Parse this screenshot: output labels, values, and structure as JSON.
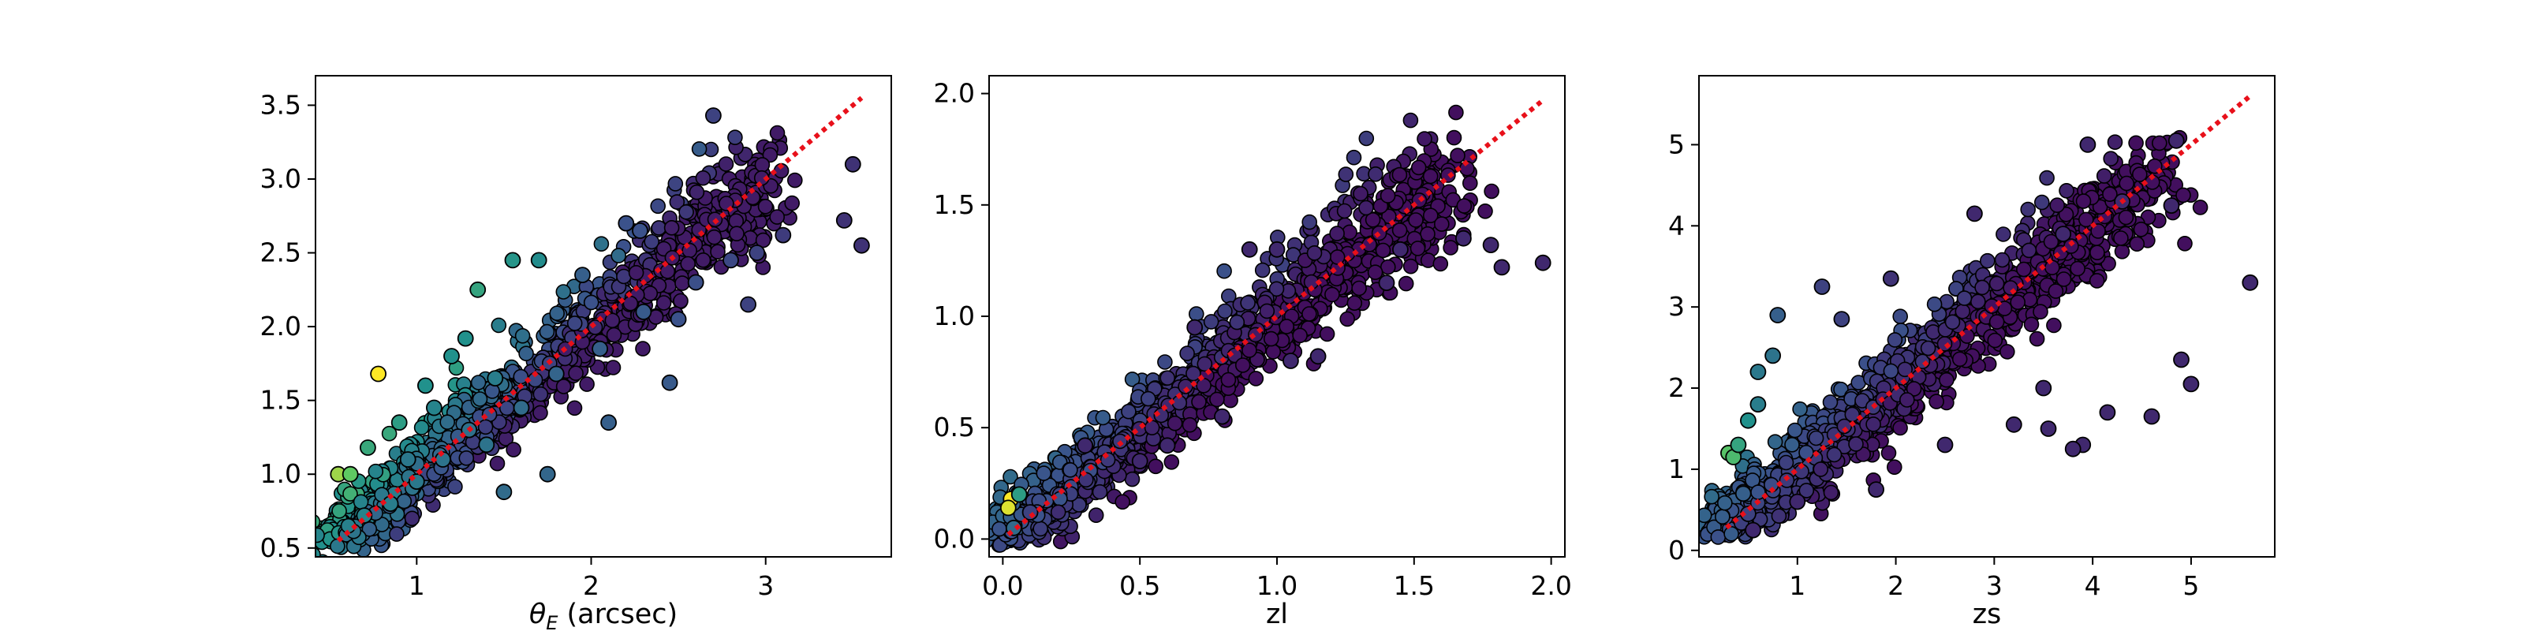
{
  "chart_data": [
    {
      "type": "scatter",
      "xlabel_main": "θ",
      "xlabel_sub": "E",
      "xlabel_rest": " (arcsec)",
      "ylabel": "",
      "xlim": [
        0.42,
        3.72
      ],
      "ylim": [
        0.44,
        3.7
      ],
      "xticks": [
        1,
        2,
        3
      ],
      "xtick_labels": [
        "1",
        "2",
        "3"
      ],
      "yticks": [
        0.5,
        1.0,
        1.5,
        2.0,
        2.5,
        3.0,
        3.5
      ],
      "ytick_labels": [
        "0.5",
        "1.0",
        "1.5",
        "2.0",
        "2.5",
        "3.0",
        "3.5"
      ],
      "reference_line": {
        "x": [
          0.55,
          3.55
        ],
        "y": [
          0.55,
          3.55
        ],
        "color": "#e8101a",
        "style": "dotted"
      },
      "colormap": "viridis",
      "grid": false,
      "points": [
        {
          "x": 0.55,
          "y": 1.0,
          "c": 0.85
        },
        {
          "x": 0.62,
          "y": 1.0,
          "c": 0.75
        },
        {
          "x": 0.78,
          "y": 1.68,
          "c": 1.0
        },
        {
          "x": 0.72,
          "y": 1.18,
          "c": 0.6
        },
        {
          "x": 0.9,
          "y": 1.35,
          "c": 0.55
        },
        {
          "x": 1.05,
          "y": 1.6,
          "c": 0.5
        },
        {
          "x": 1.2,
          "y": 1.8,
          "c": 0.5
        },
        {
          "x": 1.35,
          "y": 2.25,
          "c": 0.58
        },
        {
          "x": 1.55,
          "y": 2.45,
          "c": 0.52
        },
        {
          "x": 1.7,
          "y": 2.45,
          "c": 0.48
        },
        {
          "x": 1.28,
          "y": 1.92,
          "c": 0.5
        },
        {
          "x": 1.1,
          "y": 1.45,
          "c": 0.45
        },
        {
          "x": 0.95,
          "y": 1.1,
          "c": 0.4
        },
        {
          "x": 1.5,
          "y": 0.88,
          "c": 0.35
        },
        {
          "x": 1.75,
          "y": 1.0,
          "c": 0.33
        },
        {
          "x": 2.1,
          "y": 1.35,
          "c": 0.3
        },
        {
          "x": 2.45,
          "y": 1.62,
          "c": 0.28
        },
        {
          "x": 2.7,
          "y": 3.43,
          "c": 0.2
        },
        {
          "x": 3.5,
          "y": 3.1,
          "c": 0.15
        },
        {
          "x": 3.45,
          "y": 2.72,
          "c": 0.15
        },
        {
          "x": 3.55,
          "y": 2.55,
          "c": 0.15
        },
        {
          "x": 3.1,
          "y": 2.62,
          "c": 0.18
        },
        {
          "x": 2.95,
          "y": 2.5,
          "c": 0.2
        },
        {
          "x": 2.9,
          "y": 2.15,
          "c": 0.2
        },
        {
          "x": 2.2,
          "y": 2.7,
          "c": 0.25
        },
        {
          "x": 2.28,
          "y": 2.65,
          "c": 0.25
        },
        {
          "x": 2.5,
          "y": 2.05,
          "c": 0.25
        },
        {
          "x": 1.95,
          "y": 2.35,
          "c": 0.3
        },
        {
          "x": 1.6,
          "y": 1.45,
          "c": 0.35
        },
        {
          "x": 1.4,
          "y": 1.2,
          "c": 0.38
        },
        {
          "x": 2.05,
          "y": 1.85,
          "c": 0.3
        },
        {
          "x": 1.8,
          "y": 1.68,
          "c": 0.32
        },
        {
          "x": 2.3,
          "y": 2.1,
          "c": 0.28
        },
        {
          "x": 2.6,
          "y": 2.3,
          "c": 0.24
        },
        {
          "x": 2.8,
          "y": 2.45,
          "c": 0.22
        },
        {
          "x": 0.85,
          "y": 0.8,
          "c": 0.42
        },
        {
          "x": 1.0,
          "y": 0.95,
          "c": 0.4
        },
        {
          "x": 1.15,
          "y": 1.1,
          "c": 0.38
        },
        {
          "x": 1.3,
          "y": 1.3,
          "c": 0.37
        },
        {
          "x": 0.7,
          "y": 0.72,
          "c": 0.45
        },
        {
          "x": 1.45,
          "y": 1.65,
          "c": 0.42
        }
      ]
    },
    {
      "type": "scatter",
      "xlabel": "zl",
      "ylabel": "",
      "xlim": [
        -0.05,
        2.05
      ],
      "ylim": [
        -0.08,
        2.08
      ],
      "xticks": [
        0.0,
        0.5,
        1.0,
        1.5,
        2.0
      ],
      "xtick_labels": [
        "0.0",
        "0.5",
        "1.0",
        "1.5",
        "2.0"
      ],
      "yticks": [
        0.0,
        0.5,
        1.0,
        1.5,
        2.0
      ],
      "ytick_labels": [
        "0.0",
        "0.5",
        "1.0",
        "1.5",
        "2.0"
      ],
      "reference_line": {
        "x": [
          0.02,
          1.97
        ],
        "y": [
          0.02,
          1.97
        ],
        "color": "#e8101a",
        "style": "dotted"
      },
      "colormap": "viridis",
      "grid": false,
      "points": [
        {
          "x": 0.03,
          "y": 0.18,
          "c": 1.0
        },
        {
          "x": 0.02,
          "y": 0.14,
          "c": 0.95
        },
        {
          "x": 0.06,
          "y": 0.2,
          "c": 0.55
        },
        {
          "x": 0.04,
          "y": 0.05,
          "c": 0.35
        },
        {
          "x": 0.1,
          "y": 0.12,
          "c": 0.2
        },
        {
          "x": 1.68,
          "y": 1.35,
          "c": 0.12
        },
        {
          "x": 1.78,
          "y": 1.32,
          "c": 0.12
        },
        {
          "x": 1.82,
          "y": 1.22,
          "c": 0.12
        },
        {
          "x": 1.97,
          "y": 1.24,
          "c": 0.12
        },
        {
          "x": 1.45,
          "y": 1.3,
          "c": 0.12
        },
        {
          "x": 1.4,
          "y": 1.15,
          "c": 0.12
        },
        {
          "x": 1.15,
          "y": 0.82,
          "c": 0.12
        },
        {
          "x": 1.05,
          "y": 0.8,
          "c": 0.12
        },
        {
          "x": 0.9,
          "y": 1.3,
          "c": 0.12
        },
        {
          "x": 1.0,
          "y": 1.3,
          "c": 0.12
        },
        {
          "x": 0.7,
          "y": 0.95,
          "c": 0.12
        },
        {
          "x": 0.6,
          "y": 0.42,
          "c": 0.12
        },
        {
          "x": 0.8,
          "y": 0.55,
          "c": 0.12
        },
        {
          "x": 0.5,
          "y": 0.35,
          "c": 0.12
        },
        {
          "x": 0.3,
          "y": 0.42,
          "c": 0.12
        }
      ]
    },
    {
      "type": "scatter",
      "xlabel": "zs",
      "ylabel": "",
      "xlim": [
        0.0,
        5.85
      ],
      "ylim": [
        -0.08,
        5.85
      ],
      "xticks": [
        1,
        2,
        3,
        4,
        5
      ],
      "xtick_labels": [
        "1",
        "2",
        "3",
        "4",
        "5"
      ],
      "yticks": [
        0,
        1,
        2,
        3,
        4,
        5
      ],
      "ytick_labels": [
        "0",
        "1",
        "2",
        "3",
        "4",
        "5"
      ],
      "reference_line": {
        "x": [
          0.28,
          5.6
        ],
        "y": [
          0.28,
          5.6
        ],
        "color": "#e8101a",
        "style": "dotted"
      },
      "colormap": "viridis",
      "grid": false,
      "points": [
        {
          "x": 0.3,
          "y": 1.2,
          "c": 0.72
        },
        {
          "x": 0.35,
          "y": 1.15,
          "c": 0.68
        },
        {
          "x": 0.4,
          "y": 1.3,
          "c": 0.58
        },
        {
          "x": 0.5,
          "y": 1.6,
          "c": 0.5
        },
        {
          "x": 0.6,
          "y": 1.8,
          "c": 0.42
        },
        {
          "x": 0.75,
          "y": 2.4,
          "c": 0.38
        },
        {
          "x": 0.6,
          "y": 2.2,
          "c": 0.4
        },
        {
          "x": 0.8,
          "y": 2.9,
          "c": 0.3
        },
        {
          "x": 1.25,
          "y": 3.25,
          "c": 0.2
        },
        {
          "x": 1.45,
          "y": 2.85,
          "c": 0.2
        },
        {
          "x": 1.95,
          "y": 3.35,
          "c": 0.15
        },
        {
          "x": 2.8,
          "y": 4.15,
          "c": 0.12
        },
        {
          "x": 3.95,
          "y": 5.0,
          "c": 0.12
        },
        {
          "x": 4.85,
          "y": 5.05,
          "c": 0.12
        },
        {
          "x": 5.6,
          "y": 3.3,
          "c": 0.12
        },
        {
          "x": 4.3,
          "y": 4.3,
          "c": 0.12
        },
        {
          "x": 4.8,
          "y": 4.25,
          "c": 0.12
        },
        {
          "x": 4.9,
          "y": 2.35,
          "c": 0.12
        },
        {
          "x": 4.6,
          "y": 1.65,
          "c": 0.12
        },
        {
          "x": 3.9,
          "y": 1.3,
          "c": 0.12
        },
        {
          "x": 3.8,
          "y": 1.25,
          "c": 0.12
        },
        {
          "x": 3.7,
          "y": 3.9,
          "c": 0.12
        },
        {
          "x": 4.15,
          "y": 1.7,
          "c": 0.12
        },
        {
          "x": 5.0,
          "y": 2.05,
          "c": 0.12
        },
        {
          "x": 3.55,
          "y": 1.5,
          "c": 0.12
        },
        {
          "x": 1.8,
          "y": 0.75,
          "c": 0.12
        },
        {
          "x": 1.0,
          "y": 0.6,
          "c": 0.12
        },
        {
          "x": 0.55,
          "y": 0.25,
          "c": 0.12
        },
        {
          "x": 0.5,
          "y": 0.45,
          "c": 0.2
        },
        {
          "x": 0.45,
          "y": 0.7,
          "c": 0.3
        },
        {
          "x": 2.5,
          "y": 1.3,
          "c": 0.12
        },
        {
          "x": 3.2,
          "y": 1.55,
          "c": 0.12
        },
        {
          "x": 3.5,
          "y": 2.0,
          "c": 0.12
        }
      ]
    }
  ]
}
